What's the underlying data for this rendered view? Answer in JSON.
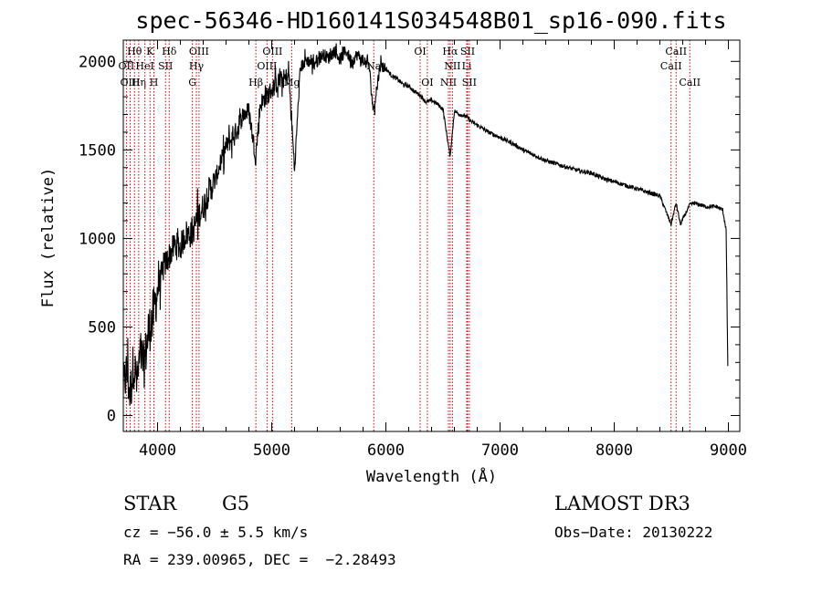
{
  "chart_data": {
    "type": "line",
    "title": "spec-56346-HD160141S034548B01_sp16-090.fits",
    "xlabel": "Wavelength (Å)",
    "ylabel": "Flux (relative)",
    "xlim": [
      3700,
      9100
    ],
    "ylim": [
      -90,
      2120
    ],
    "xticks": [
      4000,
      5000,
      6000,
      7000,
      8000,
      9000
    ],
    "yticks": [
      0,
      500,
      1000,
      1500,
      2000
    ],
    "grid": false,
    "series": [
      {
        "name": "flux",
        "x": [
          3700,
          3730,
          3760,
          3790,
          3820,
          3850,
          3880,
          3910,
          3940,
          3970,
          4000,
          4050,
          4100,
          4150,
          4200,
          4250,
          4300,
          4350,
          4400,
          4450,
          4500,
          4550,
          4600,
          4650,
          4700,
          4750,
          4800,
          4860,
          4900,
          4950,
          5000,
          5050,
          5100,
          5150,
          5200,
          5250,
          5300,
          5350,
          5400,
          5450,
          5500,
          5550,
          5600,
          5650,
          5700,
          5750,
          5800,
          5850,
          5890,
          5950,
          6000,
          6050,
          6100,
          6150,
          6200,
          6250,
          6300,
          6350,
          6400,
          6450,
          6500,
          6563,
          6600,
          6650,
          6700,
          6750,
          6800,
          6900,
          7000,
          7100,
          7200,
          7300,
          7400,
          7500,
          7600,
          7700,
          7800,
          7900,
          8000,
          8100,
          8200,
          8300,
          8400,
          8498,
          8542,
          8580,
          8662,
          8700,
          8800,
          8900,
          8950,
          8980,
          8995
        ],
        "values": [
          150,
          250,
          120,
          300,
          180,
          350,
          280,
          420,
          520,
          600,
          700,
          830,
          900,
          960,
          950,
          1030,
          1020,
          1120,
          1180,
          1270,
          1320,
          1420,
          1520,
          1560,
          1620,
          1700,
          1720,
          1460,
          1760,
          1800,
          1840,
          1880,
          1900,
          1920,
          1390,
          1960,
          2010,
          1990,
          2000,
          2040,
          2020,
          2060,
          2010,
          2060,
          2000,
          2040,
          2000,
          1990,
          1720,
          1980,
          1960,
          1920,
          1900,
          1870,
          1860,
          1830,
          1810,
          1770,
          1780,
          1760,
          1730,
          1460,
          1720,
          1700,
          1690,
          1660,
          1640,
          1600,
          1570,
          1540,
          1500,
          1470,
          1440,
          1420,
          1400,
          1380,
          1370,
          1340,
          1320,
          1300,
          1280,
          1260,
          1240,
          1080,
          1200,
          1080,
          1190,
          1200,
          1180,
          1180,
          1160,
          1050,
          280
        ]
      }
    ],
    "lines": [
      {
        "label": "Hθ",
        "x": 3798,
        "row": 1
      },
      {
        "label": "OII",
        "x": 3727,
        "row": 2
      },
      {
        "label": "OIII",
        "x": 3760,
        "row": 3
      },
      {
        "label": "Hη",
        "x": 3835,
        "row": 3
      },
      {
        "label": "HeI",
        "x": 3889,
        "row": 2
      },
      {
        "label": "K",
        "x": 3934,
        "row": 1
      },
      {
        "label": "H",
        "x": 3968,
        "row": 3
      },
      {
        "label": "Hδ",
        "x": 4102,
        "row": 1
      },
      {
        "label": "SII",
        "x": 4070,
        "row": 2
      },
      {
        "label": "OIII",
        "x": 4363,
        "row": 1
      },
      {
        "label": "Hγ",
        "x": 4340,
        "row": 2
      },
      {
        "label": "G",
        "x": 4305,
        "row": 3
      },
      {
        "label": "Hβ",
        "x": 4861,
        "row": 3
      },
      {
        "label": "OIII",
        "x": 4959,
        "row": 2
      },
      {
        "label": "OIII",
        "x": 5007,
        "row": 1
      },
      {
        "label": "Mg",
        "x": 5175,
        "row": 3
      },
      {
        "label": "Na",
        "x": 5894,
        "row": 2
      },
      {
        "label": "OI",
        "x": 6300,
        "row": 1
      },
      {
        "label": "OI",
        "x": 6363,
        "row": 3
      },
      {
        "label": "NII",
        "x": 6548,
        "row": 3
      },
      {
        "label": "Hα",
        "x": 6563,
        "row": 1
      },
      {
        "label": "NII",
        "x": 6583,
        "row": 2
      },
      {
        "label": "Li",
        "x": 6708,
        "row": 2
      },
      {
        "label": "SII",
        "x": 6716,
        "row": 1
      },
      {
        "label": "SII",
        "x": 6731,
        "row": 3
      },
      {
        "label": "CaII",
        "x": 8498,
        "row": 2
      },
      {
        "label": "CaII",
        "x": 8542,
        "row": 1
      },
      {
        "label": "CaII",
        "x": 8662,
        "row": 3
      }
    ]
  },
  "info": {
    "object_class": "STAR",
    "subclass": "G5",
    "survey": "LAMOST DR3",
    "redshift": "cz = −56.0 ± 5.5 km/s",
    "obs_date": "Obs−Date: 20130222",
    "coords": "RA = 239.00965, DEC =  −2.28493"
  },
  "colors": {
    "spectrum": "#000000",
    "line_marker": "#cc0000",
    "axes": "#000000"
  }
}
